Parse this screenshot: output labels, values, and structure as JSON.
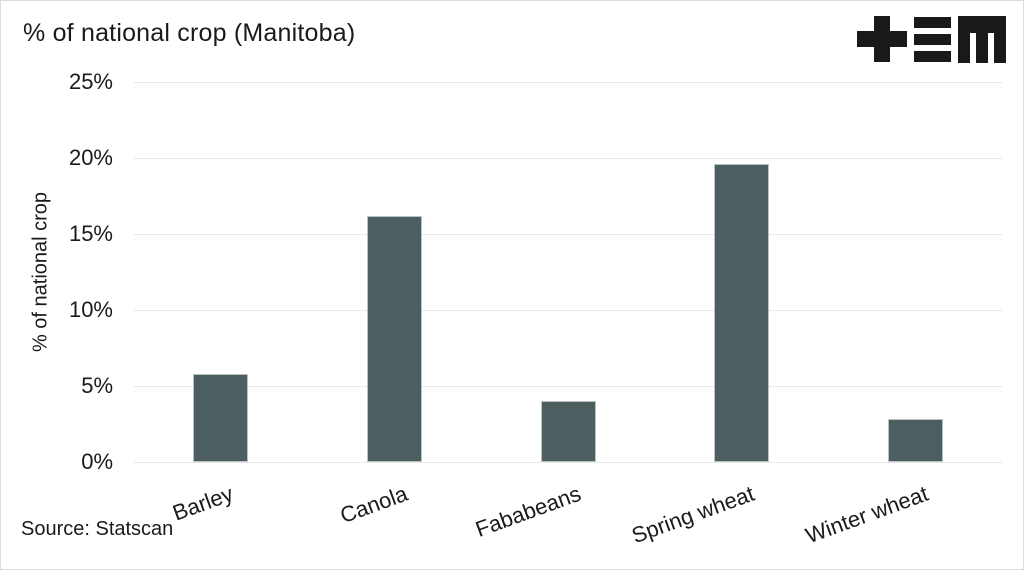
{
  "chart_data": {
    "type": "bar",
    "title": "% of national crop (Manitoba)",
    "categories": [
      "Barley",
      "Canola",
      "Fababeans",
      "Spring wheat",
      "Winter wheat"
    ],
    "values": [
      5.8,
      16.2,
      4.0,
      19.6,
      2.8
    ],
    "xlabel": "",
    "ylabel": "% of national crop",
    "ylim": [
      0,
      25
    ],
    "yticks": [
      0,
      5,
      10,
      15,
      20,
      25
    ],
    "ytick_labels": [
      "0%",
      "5%",
      "10%",
      "15%",
      "20%",
      "25%"
    ],
    "grid": true,
    "legend": "none",
    "source_note": "Source: Statscan"
  },
  "logo": {
    "glyphs": [
      "plus",
      "triple-bar",
      "m"
    ]
  },
  "colors": {
    "bar": "#4d5e60",
    "grid": "#e9e9e9",
    "text": "#1a1a1a",
    "border": "#dcdcdc",
    "logo": "#191919",
    "background": "#ffffff"
  }
}
